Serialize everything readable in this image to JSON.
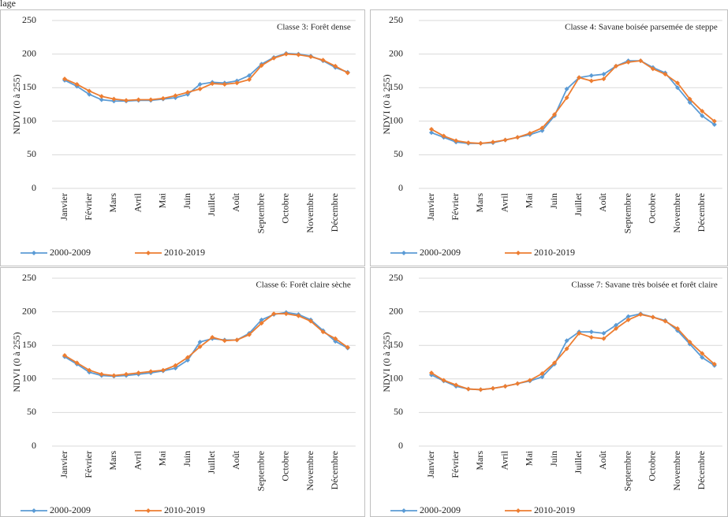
{
  "caption_fragment": "lage",
  "chart_data": [
    {
      "type": "line",
      "title": "Classe 3: Forêt dense",
      "y_label": "NDVI (0 à 255)",
      "categories": [
        "Janvier",
        null,
        "Février",
        null,
        "Mars",
        null,
        "Avril",
        null,
        "Mai",
        null,
        "Juin",
        null,
        "Juillet",
        null,
        "Août",
        null,
        "Septembre",
        null,
        "Octobre",
        null,
        "Novembre",
        null,
        "Décembre",
        null
      ],
      "series": [
        {
          "name": "2000-2009",
          "color": "#5b9bd5",
          "values": [
            161,
            152,
            140,
            132,
            130,
            130,
            131,
            131,
            133,
            135,
            140,
            155,
            158,
            157,
            160,
            168,
            185,
            195,
            201,
            200,
            197,
            190,
            180,
            173
          ]
        },
        {
          "name": "2010-2019",
          "color": "#ed7d31",
          "values": [
            163,
            155,
            145,
            137,
            133,
            131,
            132,
            132,
            134,
            138,
            143,
            148,
            156,
            155,
            157,
            162,
            183,
            194,
            200,
            199,
            196,
            191,
            182,
            172
          ]
        }
      ],
      "ylim": [
        0,
        250
      ],
      "yticks": [
        0,
        50,
        100,
        150,
        200,
        250
      ],
      "grid": true,
      "legend": "bottom"
    },
    {
      "type": "line",
      "title": "Classe 4: Savane boisée parsemée de steppe",
      "y_label": "NDVI (0 à 255)",
      "categories": [
        "Janvier",
        null,
        "Février",
        null,
        "Mars",
        null,
        "Avril",
        null,
        "Mai",
        null,
        "Juin",
        null,
        "Juillet",
        null,
        "Août",
        null,
        "Septembre",
        null,
        "Octobre",
        null,
        "Novembre",
        null,
        "Décembre",
        null
      ],
      "series": [
        {
          "name": "2000-2009",
          "color": "#5b9bd5",
          "values": [
            83,
            76,
            69,
            67,
            67,
            68,
            72,
            76,
            80,
            86,
            108,
            148,
            165,
            168,
            170,
            182,
            190,
            190,
            180,
            172,
            150,
            128,
            108,
            95
          ]
        },
        {
          "name": "2010-2019",
          "color": "#ed7d31",
          "values": [
            88,
            78,
            71,
            68,
            67,
            69,
            72,
            76,
            82,
            90,
            110,
            135,
            165,
            160,
            163,
            182,
            188,
            190,
            178,
            170,
            157,
            133,
            115,
            100
          ]
        }
      ],
      "ylim": [
        0,
        250
      ],
      "yticks": [
        0,
        50,
        100,
        150,
        200,
        250
      ],
      "grid": true,
      "legend": "bottom"
    },
    {
      "type": "line",
      "title": "Classe 6: Forêt claire sèche",
      "y_label": "NDVI (0 à 255)",
      "categories": [
        "Janvier",
        null,
        "Février",
        null,
        "Mars",
        null,
        "Avril",
        null,
        "Mai",
        null,
        "Juin",
        null,
        "Juillet",
        null,
        "Août",
        null,
        "Septembre",
        null,
        "Octobre",
        null,
        "Novembre",
        null,
        "Décembre",
        null
      ],
      "series": [
        {
          "name": "2000-2009",
          "color": "#5b9bd5",
          "values": [
            133,
            122,
            110,
            105,
            104,
            105,
            107,
            109,
            112,
            116,
            128,
            155,
            160,
            158,
            158,
            168,
            188,
            196,
            199,
            196,
            188,
            172,
            156,
            146
          ]
        },
        {
          "name": "2010-2019",
          "color": "#ed7d31",
          "values": [
            135,
            124,
            113,
            107,
            105,
            107,
            109,
            111,
            113,
            120,
            132,
            148,
            162,
            157,
            158,
            166,
            183,
            197,
            197,
            194,
            186,
            170,
            160,
            147
          ]
        }
      ],
      "ylim": [
        0,
        250
      ],
      "yticks": [
        0,
        50,
        100,
        150,
        200,
        250
      ],
      "grid": true,
      "legend": "bottom"
    },
    {
      "type": "line",
      "title": "Classe 7: Savane très boisée et forêt claire",
      "y_label": "NDVI (0 à 255)",
      "categories": [
        "Janvier",
        null,
        "Février",
        null,
        "Mars",
        null,
        "Avril",
        null,
        "Mai",
        null,
        "Juin",
        null,
        "Juillet",
        null,
        "Août",
        null,
        "Septembre",
        null,
        "Octobre",
        null,
        "Novembre",
        null,
        "Décembre",
        null
      ],
      "series": [
        {
          "name": "2000-2009",
          "color": "#5b9bd5",
          "values": [
            106,
            97,
            89,
            85,
            84,
            86,
            89,
            93,
            97,
            103,
            122,
            157,
            170,
            170,
            168,
            180,
            193,
            197,
            192,
            187,
            172,
            152,
            132,
            120
          ]
        },
        {
          "name": "2010-2019",
          "color": "#ed7d31",
          "values": [
            109,
            98,
            91,
            85,
            84,
            86,
            89,
            93,
            98,
            108,
            124,
            145,
            168,
            162,
            160,
            175,
            188,
            196,
            192,
            186,
            175,
            155,
            138,
            122
          ]
        }
      ],
      "ylim": [
        0,
        250
      ],
      "yticks": [
        0,
        50,
        100,
        150,
        200,
        250
      ],
      "grid": true,
      "legend": "bottom"
    }
  ]
}
